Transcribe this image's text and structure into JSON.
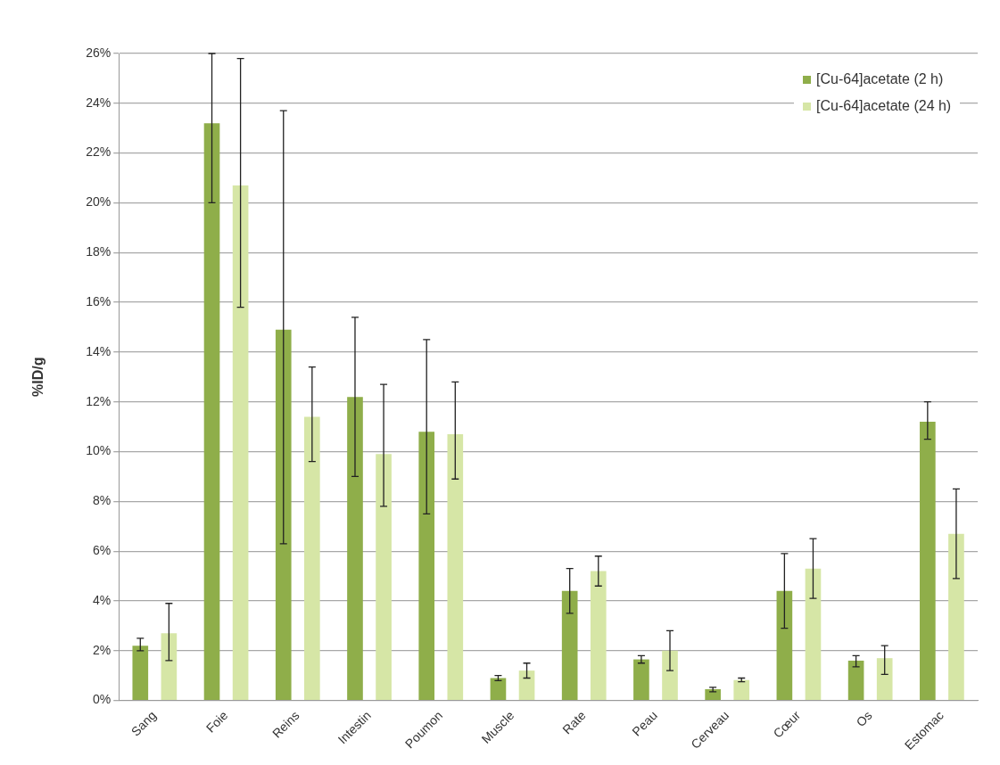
{
  "chart_data": {
    "type": "bar",
    "ylabel": "%ID/g",
    "categories": [
      "Sang",
      "Foie",
      "Reins",
      "Intestin",
      "Poumon",
      "Muscle",
      "Rate",
      "Peau",
      "Cerveau",
      "Cœur",
      "Os",
      "Estomac"
    ],
    "series": [
      {
        "name": "[Cu-64]acetate (2 h)",
        "color": "#8fae4a",
        "values": [
          2.2,
          23.2,
          14.9,
          12.2,
          10.8,
          0.9,
          4.4,
          1.65,
          0.45,
          4.4,
          1.6,
          11.2
        ],
        "errors": [
          [
            2.0,
            2.5
          ],
          [
            20.0,
            26.0
          ],
          [
            6.3,
            23.7
          ],
          [
            9.0,
            15.4
          ],
          [
            7.5,
            14.5
          ],
          [
            0.8,
            1.0
          ],
          [
            3.5,
            5.3
          ],
          [
            1.5,
            1.8
          ],
          [
            0.35,
            0.53
          ],
          [
            2.9,
            5.9
          ],
          [
            1.35,
            1.8
          ],
          [
            10.5,
            12.0
          ]
        ]
      },
      {
        "name": "[Cu-64]acetate (24 h)",
        "color": "#d6e6a6",
        "values": [
          2.7,
          20.7,
          11.4,
          9.9,
          10.7,
          1.2,
          5.2,
          2.0,
          0.82,
          5.3,
          1.7,
          6.7
        ],
        "errors": [
          [
            1.6,
            3.9
          ],
          [
            15.8,
            25.8
          ],
          [
            9.6,
            13.4
          ],
          [
            7.8,
            12.7
          ],
          [
            8.9,
            12.8
          ],
          [
            0.9,
            1.5
          ],
          [
            4.6,
            5.8
          ],
          [
            1.2,
            2.8
          ],
          [
            0.75,
            0.9
          ],
          [
            4.1,
            6.5
          ],
          [
            1.05,
            2.2
          ],
          [
            4.9,
            8.5
          ]
        ]
      }
    ],
    "ylim": [
      0,
      26
    ],
    "yticks": [
      {
        "value": 0,
        "label": "0%"
      },
      {
        "value": 2,
        "label": "2%"
      },
      {
        "value": 4,
        "label": "4%"
      },
      {
        "value": 6,
        "label": "6%"
      },
      {
        "value": 8,
        "label": "8%"
      },
      {
        "value": 10,
        "label": "10%"
      },
      {
        "value": 12,
        "label": "12%"
      },
      {
        "value": 14,
        "label": "14%"
      },
      {
        "value": 16,
        "label": "16%"
      },
      {
        "value": 18,
        "label": "18%"
      },
      {
        "value": 20,
        "label": "20%"
      },
      {
        "value": 22,
        "label": "22%"
      },
      {
        "value": 24,
        "label": "24%"
      },
      {
        "value": 26,
        "label": "26%"
      }
    ],
    "grid": "y",
    "legend": "top right"
  }
}
